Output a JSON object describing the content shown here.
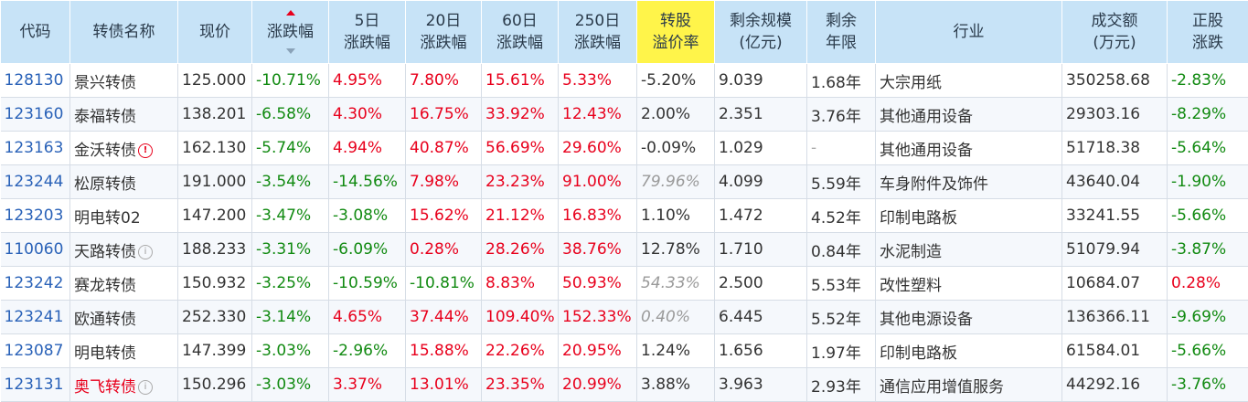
{
  "headers": {
    "code": "代码",
    "name": "转债名称",
    "price": "现价",
    "change": "涨跌幅",
    "chg5": [
      "5日",
      "涨跌幅"
    ],
    "chg20": [
      "20日",
      "涨跌幅"
    ],
    "chg60": [
      "60日",
      "涨跌幅"
    ],
    "chg250": [
      "250日",
      "涨跌幅"
    ],
    "premium": [
      "转股",
      "溢价率"
    ],
    "remain_size": [
      "剩余规模",
      "(亿元)"
    ],
    "remain_years": [
      "剩余",
      "年限"
    ],
    "industry": "行业",
    "volume": [
      "成交额",
      "(万元)"
    ],
    "stock_change": [
      "正股",
      "涨跌"
    ]
  },
  "colors": {
    "header_bg": "#c7e3f7",
    "highlight_header_bg": "#fff44a",
    "up": "#e8001c",
    "down": "#118a11",
    "code": "#2a62b8"
  },
  "rows": [
    {
      "code": "128130",
      "name": "景兴转债",
      "name_red": false,
      "icon": "",
      "price": "125.000",
      "change": "-10.71%",
      "chg5": "4.95%",
      "chg20": "7.80%",
      "chg60": "15.61%",
      "chg250": "5.33%",
      "premium": "-5.20%",
      "premium_italic": false,
      "remain_size": "9.039",
      "remain_years": "1.68年",
      "industry": "大宗用纸",
      "volume": "350258.68",
      "stock_change": "-2.83%"
    },
    {
      "code": "123160",
      "name": "泰福转债",
      "name_red": false,
      "icon": "",
      "price": "138.201",
      "change": "-6.58%",
      "chg5": "4.30%",
      "chg20": "16.75%",
      "chg60": "33.92%",
      "chg250": "12.43%",
      "premium": "2.00%",
      "premium_italic": false,
      "remain_size": "2.351",
      "remain_years": "3.76年",
      "industry": "其他通用设备",
      "volume": "29303.16",
      "stock_change": "-8.29%"
    },
    {
      "code": "123163",
      "name": "金沃转债",
      "name_red": false,
      "icon": "warn",
      "price": "162.130",
      "change": "-5.74%",
      "chg5": "4.94%",
      "chg20": "40.87%",
      "chg60": "56.69%",
      "chg250": "29.60%",
      "premium": "-0.09%",
      "premium_italic": false,
      "remain_size": "1.029",
      "remain_years": "-",
      "industry": "其他通用设备",
      "volume": "51718.38",
      "stock_change": "-5.64%"
    },
    {
      "code": "123244",
      "name": "松原转债",
      "name_red": false,
      "icon": "",
      "price": "191.000",
      "change": "-3.54%",
      "chg5": "-14.56%",
      "chg20": "7.98%",
      "chg60": "23.23%",
      "chg250": "91.00%",
      "premium": "79.96%",
      "premium_italic": true,
      "remain_size": "4.099",
      "remain_years": "5.59年",
      "industry": "车身附件及饰件",
      "volume": "43640.04",
      "stock_change": "-1.90%"
    },
    {
      "code": "123203",
      "name": "明电转02",
      "name_red": false,
      "icon": "",
      "price": "147.200",
      "change": "-3.47%",
      "chg5": "-3.08%",
      "chg20": "15.62%",
      "chg60": "21.12%",
      "chg250": "16.83%",
      "premium": "1.10%",
      "premium_italic": false,
      "remain_size": "1.472",
      "remain_years": "4.52年",
      "industry": "印制电路板",
      "volume": "33241.55",
      "stock_change": "-5.66%"
    },
    {
      "code": "110060",
      "name": "天路转债",
      "name_red": false,
      "icon": "info",
      "price": "188.233",
      "change": "-3.31%",
      "chg5": "-6.09%",
      "chg20": "0.28%",
      "chg60": "28.26%",
      "chg250": "38.76%",
      "premium": "12.78%",
      "premium_italic": false,
      "remain_size": "1.710",
      "remain_years": "0.84年",
      "industry": "水泥制造",
      "volume": "51079.94",
      "stock_change": "-3.87%"
    },
    {
      "code": "123242",
      "name": "赛龙转债",
      "name_red": false,
      "icon": "",
      "price": "150.932",
      "change": "-3.25%",
      "chg5": "-10.59%",
      "chg20": "-10.81%",
      "chg60": "8.83%",
      "chg250": "50.93%",
      "premium": "54.33%",
      "premium_italic": true,
      "remain_size": "2.500",
      "remain_years": "5.53年",
      "industry": "改性塑料",
      "volume": "10684.07",
      "stock_change": "0.28%"
    },
    {
      "code": "123241",
      "name": "欧通转债",
      "name_red": false,
      "icon": "",
      "price": "252.330",
      "change": "-3.14%",
      "chg5": "4.65%",
      "chg20": "37.44%",
      "chg60": "109.40%",
      "chg250": "152.33%",
      "premium": "0.40%",
      "premium_italic": true,
      "remain_size": "6.445",
      "remain_years": "5.52年",
      "industry": "其他电源设备",
      "volume": "136366.11",
      "stock_change": "-9.69%"
    },
    {
      "code": "123087",
      "name": "明电转债",
      "name_red": false,
      "icon": "",
      "price": "147.399",
      "change": "-3.03%",
      "chg5": "-2.96%",
      "chg20": "15.88%",
      "chg60": "22.26%",
      "chg250": "20.95%",
      "premium": "1.24%",
      "premium_italic": false,
      "remain_size": "1.656",
      "remain_years": "1.97年",
      "industry": "印制电路板",
      "volume": "61584.01",
      "stock_change": "-5.66%"
    },
    {
      "code": "123131",
      "name": "奥飞转债",
      "name_red": true,
      "icon": "info",
      "price": "150.296",
      "change": "-3.03%",
      "chg5": "3.37%",
      "chg20": "13.01%",
      "chg60": "23.35%",
      "chg250": "20.99%",
      "premium": "3.88%",
      "premium_italic": false,
      "remain_size": "3.963",
      "remain_years": "2.93年",
      "industry": "通信应用增值服务",
      "volume": "44292.16",
      "stock_change": "-3.76%"
    }
  ]
}
